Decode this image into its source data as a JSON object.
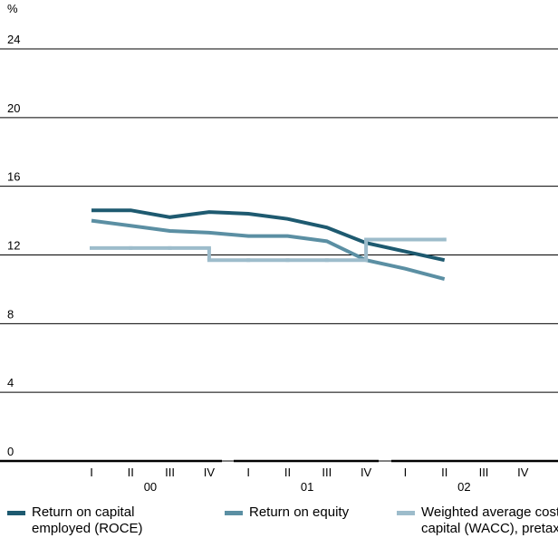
{
  "chart_data": {
    "type": "line",
    "y_unit": "%",
    "categories": [
      "I",
      "II",
      "III",
      "IV",
      "I",
      "II",
      "III",
      "IV",
      "I",
      "II",
      "III",
      "IV"
    ],
    "groups": [
      "00",
      "01",
      "02"
    ],
    "ylim": [
      0,
      24
    ],
    "yticks": [
      0,
      4,
      8,
      12,
      16,
      20,
      24
    ],
    "grid": true,
    "series": [
      {
        "name": "Return on capital employed (ROCE)",
        "color": "#1e5a70",
        "style": "line",
        "values": [
          14.6,
          14.6,
          14.2,
          14.5,
          14.4,
          14.1,
          13.6,
          12.7,
          12.2,
          11.7,
          null,
          null
        ]
      },
      {
        "name": "Return on equity",
        "color": "#5b8fa3",
        "style": "line",
        "values": [
          14.0,
          13.7,
          13.4,
          13.3,
          13.1,
          13.1,
          12.8,
          11.7,
          11.2,
          10.6,
          null,
          null
        ]
      },
      {
        "name": "Weighted average cost of capital (WACC), pretax",
        "color": "#9dbccb",
        "style": "step",
        "values": [
          12.4,
          12.4,
          12.4,
          11.7,
          11.7,
          11.7,
          11.7,
          12.9,
          12.9,
          12.9,
          null,
          null
        ]
      }
    ]
  }
}
